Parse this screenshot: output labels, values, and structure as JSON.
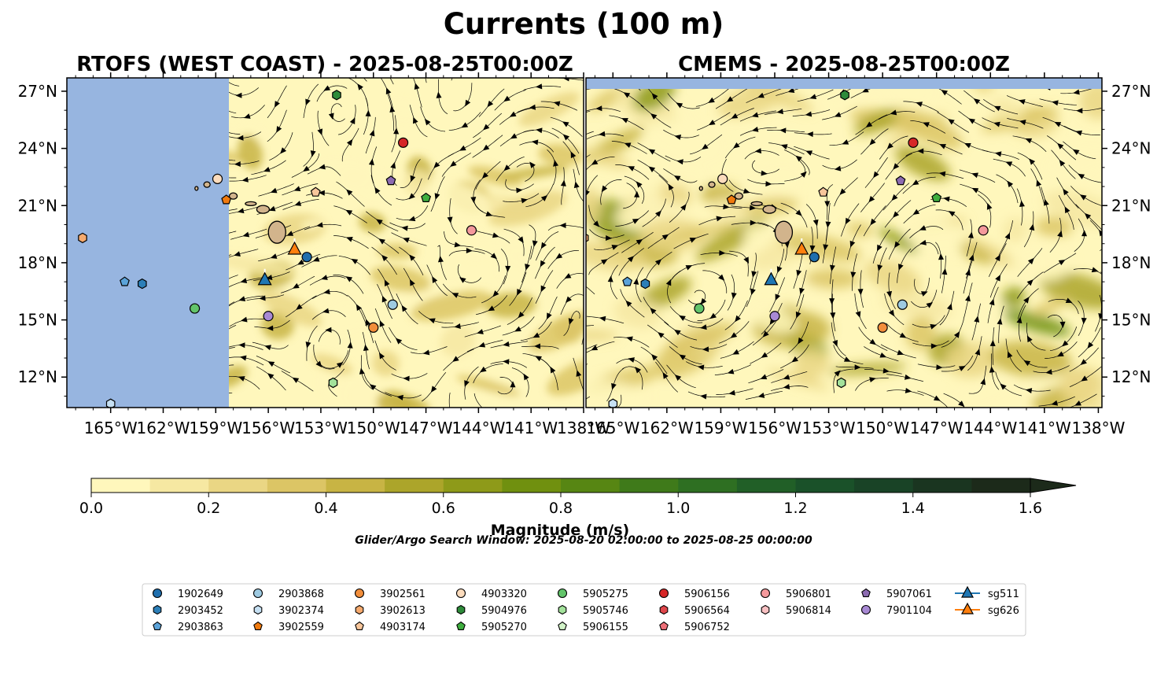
{
  "figure": {
    "title": "Currents (100 m)",
    "search_window": "Glider/Argo Search Window: 2025-08-20 02:00:00 to 2025-08-25 00:00:00"
  },
  "colors": {
    "land_mask": "#97b5e0",
    "island_fill": "#d2b48c"
  },
  "chart_data": [
    {
      "type": "heatmap",
      "subtype": "current magnitude with streamlines",
      "title": "RTOFS (WEST COAST) - 2025-08-25T00:00Z",
      "x_ticks": [
        "165°W",
        "162°W",
        "159°W",
        "156°W",
        "153°W",
        "150°W",
        "147°W",
        "144°W",
        "141°W",
        "138°W"
      ],
      "y_ticks": [
        "27°N",
        "24°N",
        "21°N",
        "18°N",
        "15°N",
        "12°N"
      ],
      "xlim": [
        -167.5,
        -138
      ],
      "ylim": [
        10.4,
        27.7
      ],
      "no_data_west_of": -157.7,
      "y_axis_side": "left"
    },
    {
      "type": "heatmap",
      "subtype": "current magnitude with streamlines",
      "title": "CMEMS - 2025-08-25T00:00Z",
      "x_ticks": [
        "165°W",
        "162°W",
        "159°W",
        "156°W",
        "153°W",
        "150°W",
        "147°W",
        "144°W",
        "141°W",
        "138°W"
      ],
      "y_ticks": [
        "27°N",
        "24°N",
        "21°N",
        "18°N",
        "15°N",
        "12°N"
      ],
      "xlim": [
        -166.5,
        -137.8
      ],
      "ylim": [
        10.4,
        27.7
      ],
      "no_data_north_of": 27.1,
      "y_axis_side": "right"
    }
  ],
  "colorbar": {
    "label": "Magnitude (m/s)",
    "min": 0.0,
    "max": 1.6,
    "step": 0.1,
    "tick_labels": [
      "0.0",
      "0.2",
      "0.4",
      "0.6",
      "0.8",
      "1.0",
      "1.2",
      "1.4",
      "1.6"
    ],
    "extend": "max",
    "colors": [
      "#fff7bc",
      "#f6e8a2",
      "#ead684",
      "#dcc565",
      "#c8b444",
      "#aca52a",
      "#8e9a19",
      "#70900f",
      "#578613",
      "#3f7a1a",
      "#2e6f22",
      "#215f27",
      "#1a5129",
      "#194326",
      "#1a3520",
      "#1c2a1a"
    ]
  },
  "legend": {
    "columns": [
      [
        {
          "label": "1902649",
          "marker": "circle",
          "color": "#1f6fae"
        },
        {
          "label": "2903452",
          "marker": "hexagon",
          "color": "#2c7fb8"
        },
        {
          "label": "2903863",
          "marker": "pentagon",
          "color": "#5ba3d9"
        }
      ],
      [
        {
          "label": "2903868",
          "marker": "circle",
          "color": "#9ecae1"
        },
        {
          "label": "3902374",
          "marker": "hexagon",
          "color": "#c6e0f3"
        },
        {
          "label": "3902559",
          "marker": "pentagon",
          "color": "#f07a0e"
        }
      ],
      [
        {
          "label": "3902561",
          "marker": "circle",
          "color": "#f28e3b"
        },
        {
          "label": "3902613",
          "marker": "hexagon",
          "color": "#f6aa6e"
        },
        {
          "label": "4903174",
          "marker": "pentagon",
          "color": "#f8c69b"
        }
      ],
      [
        {
          "label": "4903320",
          "marker": "circle",
          "color": "#fcdcbd"
        },
        {
          "label": "5904976",
          "marker": "hexagon",
          "color": "#2e8b3a"
        },
        {
          "label": "5905270",
          "marker": "pentagon",
          "color": "#3fae3f"
        }
      ],
      [
        {
          "label": "5905275",
          "marker": "circle",
          "color": "#62c46a"
        },
        {
          "label": "5905746",
          "marker": "hexagon",
          "color": "#a3e29b"
        },
        {
          "label": "5906155",
          "marker": "pentagon",
          "color": "#d2f3c8"
        }
      ],
      [
        {
          "label": "5906156",
          "marker": "circle",
          "color": "#d62728"
        },
        {
          "label": "5906564",
          "marker": "hexagon",
          "color": "#e0474c"
        },
        {
          "label": "5906752",
          "marker": "pentagon",
          "color": "#ee6f78"
        }
      ],
      [
        {
          "label": "5906801",
          "marker": "circle",
          "color": "#f4999c"
        },
        {
          "label": "5906814",
          "marker": "hexagon",
          "color": "#f8c0c2"
        }
      ],
      [
        {
          "label": "5907061",
          "marker": "pentagon",
          "color": "#8c6bb1"
        },
        {
          "label": "7901104",
          "marker": "circle",
          "color": "#a889d4"
        }
      ],
      [
        {
          "label": "sg511",
          "marker": "triangle-line",
          "color": "#1f77b4"
        },
        {
          "label": "sg626",
          "marker": "triangle-line",
          "color": "#ff7f0e"
        }
      ]
    ]
  },
  "floats": [
    {
      "id": "5904976",
      "lon": -152.1,
      "lat": 26.8,
      "marker": "hexagon",
      "color": "#2e8b3a"
    },
    {
      "id": "5906156",
      "lon": -148.3,
      "lat": 24.3,
      "marker": "circle",
      "color": "#d62728"
    },
    {
      "id": "4903320",
      "lon": -158.9,
      "lat": 22.4,
      "marker": "circle",
      "color": "#fcdcbd"
    },
    {
      "id": "4903174",
      "lon": -153.3,
      "lat": 21.7,
      "marker": "pentagon",
      "color": "#f8c69b"
    },
    {
      "id": "5907061",
      "lon": -149.0,
      "lat": 22.3,
      "marker": "pentagon",
      "color": "#8c6bb1"
    },
    {
      "id": "5905270",
      "lon": -147.0,
      "lat": 21.4,
      "marker": "pentagon",
      "color": "#3fae3f"
    },
    {
      "id": "3902559",
      "lon": -158.4,
      "lat": 21.3,
      "marker": "pentagon",
      "color": "#f07a0e"
    },
    {
      "id": "3902613",
      "lon": -166.6,
      "lat": 19.3,
      "marker": "hexagon",
      "color": "#f6aa6e"
    },
    {
      "id": "5906801",
      "lon": -144.4,
      "lat": 19.7,
      "marker": "circle",
      "color": "#f4999c"
    },
    {
      "id": "1902649",
      "lon": -153.8,
      "lat": 18.3,
      "marker": "circle",
      "color": "#1f6fae"
    },
    {
      "id": "2903863",
      "lon": -164.2,
      "lat": 17.0,
      "marker": "pentagon",
      "color": "#5ba3d9"
    },
    {
      "id": "2903452",
      "lon": -163.2,
      "lat": 16.9,
      "marker": "hexagon",
      "color": "#2c7fb8"
    },
    {
      "id": "2903868",
      "lon": -148.9,
      "lat": 15.8,
      "marker": "circle",
      "color": "#9ecae1"
    },
    {
      "id": "5905275",
      "lon": -160.2,
      "lat": 15.6,
      "marker": "circle",
      "color": "#62c46a"
    },
    {
      "id": "7901104",
      "lon": -156.0,
      "lat": 15.2,
      "marker": "circle",
      "color": "#a889d4"
    },
    {
      "id": "3902561",
      "lon": -150.0,
      "lat": 14.6,
      "marker": "circle",
      "color": "#f28e3b"
    },
    {
      "id": "5905746",
      "lon": -152.3,
      "lat": 11.7,
      "marker": "hexagon",
      "color": "#a3e29b"
    },
    {
      "id": "3902374",
      "lon": -165.0,
      "lat": 10.6,
      "marker": "hexagon",
      "color": "#c6e0f3"
    }
  ],
  "gliders": [
    {
      "id": "sg511",
      "lon": -156.2,
      "lat": 17.1,
      "color": "#1f77b4"
    },
    {
      "id": "sg626",
      "lon": -154.5,
      "lat": 18.7,
      "color": "#ff7f0e"
    }
  ]
}
